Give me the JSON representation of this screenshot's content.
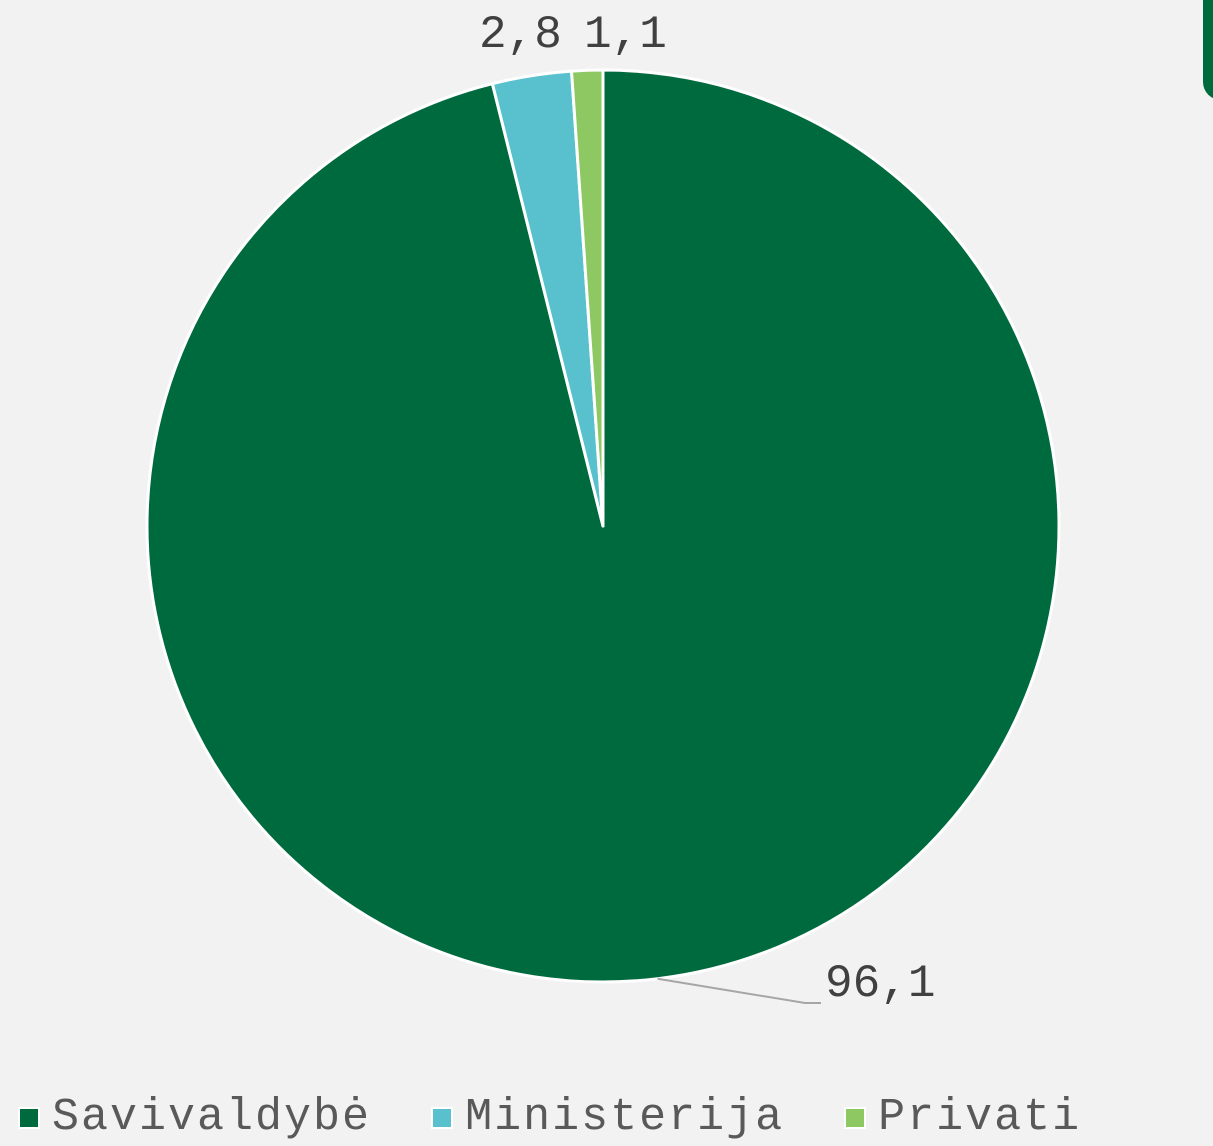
{
  "chart_data": {
    "type": "pie",
    "title": "",
    "categories": [
      "Savivaldybė",
      "Ministerija",
      "Privati"
    ],
    "values": [
      96.1,
      2.8,
      1.1
    ],
    "value_labels": [
      "96,1",
      "2,8",
      "1,1"
    ],
    "colors": [
      "#006a3f",
      "#59c1cd",
      "#8dc863"
    ],
    "legend_position": "bottom",
    "start_angle": "12 o'clock",
    "direction": "clockwise"
  }
}
